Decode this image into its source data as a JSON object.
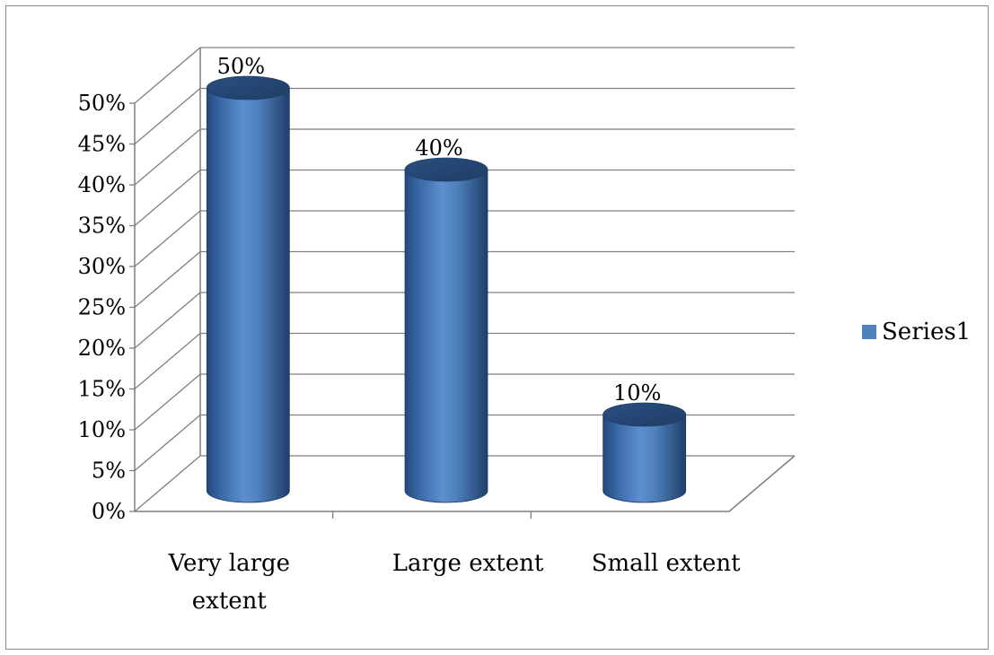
{
  "chart_data": {
    "type": "bar",
    "style": "3d-cylinder",
    "categories": [
      "Very large extent",
      "Large extent",
      "Small extent"
    ],
    "series": [
      {
        "name": "Series1",
        "values": [
          50,
          40,
          10
        ],
        "color": "#4f81bd"
      }
    ],
    "data_labels": [
      "50%",
      "40%",
      "10%"
    ],
    "ylim": [
      0,
      50
    ],
    "yticks": [
      0,
      5,
      10,
      15,
      20,
      25,
      30,
      35,
      40,
      45,
      50
    ],
    "ytick_labels": [
      "0%",
      "5%",
      "10%",
      "15%",
      "20%",
      "25%",
      "30%",
      "35%",
      "40%",
      "45%",
      "50%"
    ],
    "grid": true,
    "legend": {
      "position": "right",
      "entries": [
        "Series1"
      ]
    },
    "title": "",
    "xlabel": "",
    "ylabel": ""
  }
}
